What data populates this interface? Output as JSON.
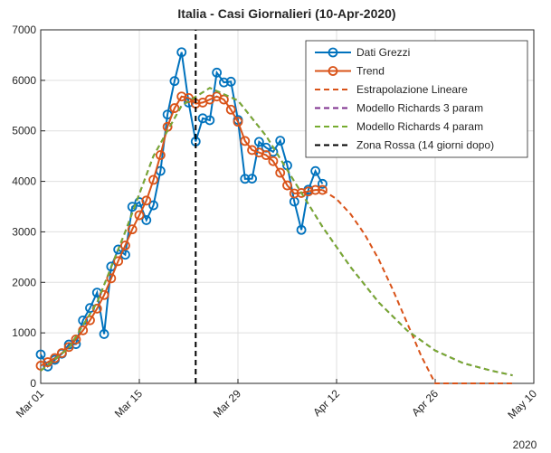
{
  "chart_data": {
    "type": "line",
    "title": "Italia - Casi Giornalieri (10-Apr-2020)",
    "x_secondary_label": "2020",
    "xlim": [
      "2020-03-01",
      "2020-05-10"
    ],
    "xticks": [
      {
        "value": "2020-03-01",
        "label": "Mar 01"
      },
      {
        "value": "2020-03-15",
        "label": "Mar 15"
      },
      {
        "value": "2020-03-29",
        "label": "Mar 29"
      },
      {
        "value": "2020-04-12",
        "label": "Apr 12"
      },
      {
        "value": "2020-04-26",
        "label": "Apr 26"
      },
      {
        "value": "2020-05-10",
        "label": "May 10"
      }
    ],
    "ylim": [
      0,
      7000
    ],
    "yticks": [
      0,
      1000,
      2000,
      3000,
      4000,
      5000,
      6000,
      7000
    ],
    "grid": true,
    "legend": "top-right",
    "series": [
      {
        "name": "Dati Grezzi",
        "color": "#0072bd",
        "line": "solid",
        "marker": "circle",
        "x": [
          "2020-03-01",
          "2020-03-02",
          "2020-03-03",
          "2020-03-04",
          "2020-03-05",
          "2020-03-06",
          "2020-03-07",
          "2020-03-08",
          "2020-03-09",
          "2020-03-10",
          "2020-03-11",
          "2020-03-12",
          "2020-03-13",
          "2020-03-14",
          "2020-03-15",
          "2020-03-16",
          "2020-03-17",
          "2020-03-18",
          "2020-03-19",
          "2020-03-20",
          "2020-03-21",
          "2020-03-22",
          "2020-03-23",
          "2020-03-24",
          "2020-03-25",
          "2020-03-26",
          "2020-03-27",
          "2020-03-28",
          "2020-03-29",
          "2020-03-30",
          "2020-03-31",
          "2020-04-01",
          "2020-04-02",
          "2020-04-03",
          "2020-04-04",
          "2020-04-05",
          "2020-04-06",
          "2020-04-07",
          "2020-04-08",
          "2020-04-09",
          "2020-04-10"
        ],
        "values": [
          573,
          335,
          466,
          587,
          769,
          778,
          1247,
          1492,
          1797,
          977,
          2313,
          2651,
          2547,
          3497,
          3590,
          3233,
          3526,
          4207,
          5322,
          5986,
          6557,
          5560,
          4789,
          5249,
          5210,
          6153,
          5959,
          5974,
          5217,
          4050,
          4053,
          4782,
          4668,
          4585,
          4805,
          4316,
          3599,
          3039,
          3836,
          4204,
          3951
        ]
      },
      {
        "name": "Trend",
        "color": "#d95319",
        "line": "solid",
        "marker": "circle",
        "x": [
          "2020-03-01",
          "2020-03-02",
          "2020-03-03",
          "2020-03-04",
          "2020-03-05",
          "2020-03-06",
          "2020-03-07",
          "2020-03-08",
          "2020-03-09",
          "2020-03-10",
          "2020-03-11",
          "2020-03-12",
          "2020-03-13",
          "2020-03-14",
          "2020-03-15",
          "2020-03-16",
          "2020-03-17",
          "2020-03-18",
          "2020-03-19",
          "2020-03-20",
          "2020-03-21",
          "2020-03-22",
          "2020-03-23",
          "2020-03-24",
          "2020-03-25",
          "2020-03-26",
          "2020-03-27",
          "2020-03-28",
          "2020-03-29",
          "2020-03-30",
          "2020-03-31",
          "2020-04-01",
          "2020-04-02",
          "2020-04-03",
          "2020-04-04",
          "2020-04-05",
          "2020-04-06",
          "2020-04-07",
          "2020-04-08",
          "2020-04-09",
          "2020-04-10"
        ],
        "values": [
          350,
          420,
          500,
          600,
          720,
          870,
          1050,
          1250,
          1480,
          1750,
          2080,
          2420,
          2730,
          3050,
          3330,
          3620,
          4030,
          4520,
          5080,
          5450,
          5680,
          5650,
          5540,
          5560,
          5620,
          5680,
          5620,
          5420,
          5180,
          4800,
          4620,
          4570,
          4520,
          4400,
          4170,
          3920,
          3760,
          3770,
          3800,
          3830,
          3830
        ]
      },
      {
        "name": "Estrapolazione Lineare",
        "color": "#d95319",
        "line": "dashed",
        "marker": "none",
        "x": [
          "2020-04-10",
          "2020-04-12",
          "2020-04-14",
          "2020-04-16",
          "2020-04-18",
          "2020-04-20",
          "2020-04-22",
          "2020-04-24",
          "2020-04-26",
          "2020-05-07"
        ],
        "values": [
          3830,
          3650,
          3350,
          2950,
          2450,
          1850,
          1200,
          550,
          0,
          0
        ]
      },
      {
        "name": "Modello Richards 3 param",
        "color": "#7e2f8e",
        "line": "dashed",
        "marker": "none",
        "x": [
          "2020-03-01",
          "2020-03-05",
          "2020-03-09",
          "2020-03-13",
          "2020-03-17",
          "2020-03-21",
          "2020-03-25",
          "2020-03-29",
          "2020-04-02",
          "2020-04-06",
          "2020-04-10",
          "2020-04-14",
          "2020-04-18",
          "2020-04-22",
          "2020-04-26",
          "2020-04-30",
          "2020-05-04",
          "2020-05-07"
        ],
        "values": [
          250,
          700,
          1600,
          3000,
          4500,
          5500,
          5850,
          5600,
          4900,
          4000,
          3100,
          2300,
          1600,
          1050,
          650,
          400,
          250,
          160
        ]
      },
      {
        "name": "Modello Richards 4 param",
        "color": "#77ac30",
        "line": "dashed",
        "marker": "none",
        "x": [
          "2020-03-01",
          "2020-03-05",
          "2020-03-09",
          "2020-03-13",
          "2020-03-17",
          "2020-03-21",
          "2020-03-25",
          "2020-03-29",
          "2020-04-02",
          "2020-04-06",
          "2020-04-10",
          "2020-04-14",
          "2020-04-18",
          "2020-04-22",
          "2020-04-26",
          "2020-04-30",
          "2020-05-04",
          "2020-05-07"
        ],
        "values": [
          250,
          700,
          1600,
          3000,
          4500,
          5500,
          5850,
          5600,
          4900,
          4000,
          3100,
          2300,
          1600,
          1050,
          650,
          400,
          250,
          160
        ]
      },
      {
        "name": "Zona Rossa (14 giorni dopo)",
        "color": "#000000",
        "line": "dashed",
        "marker": "none",
        "x": [
          "2020-03-23",
          "2020-03-23"
        ],
        "values": [
          0,
          7000
        ]
      }
    ]
  }
}
